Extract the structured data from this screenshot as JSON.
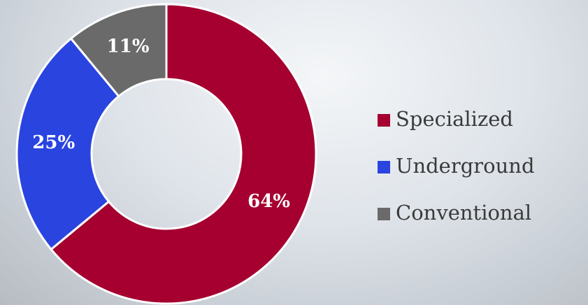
{
  "chart_data": {
    "type": "donut",
    "categories": [
      "Specialized",
      "Underground",
      "Conventional"
    ],
    "values": [
      64,
      25,
      11
    ],
    "value_labels": [
      "64%",
      "25%",
      "11%"
    ],
    "colors": [
      "#a50030",
      "#2a44e0",
      "#6a6a6a"
    ],
    "legend": "right"
  }
}
